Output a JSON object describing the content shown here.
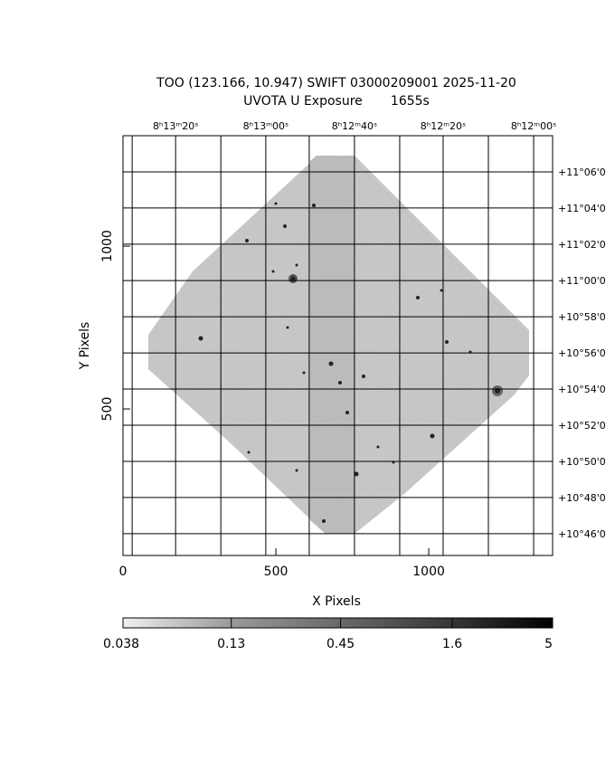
{
  "chart_data": {
    "type": "image",
    "title": "TOO (123.166, 10.947) SWIFT 03000209001 2025-11-20",
    "subtitle": "UVOTA U Exposure       1655s",
    "x_label": "X Pixels",
    "y_label": "Y Pixels",
    "xlim": [
      0,
      1405
    ],
    "ylim": [
      50,
      1339
    ],
    "xticks": [
      0,
      500,
      1000
    ],
    "yticks": [
      500,
      1000
    ],
    "ra_ticks": [
      {
        "value": 172,
        "label": "8ʰ13ᵐ20ˢ"
      },
      {
        "value": 467,
        "label": "8ʰ13ᵐ00ˢ"
      },
      {
        "value": 757,
        "label": "8ʰ12ᵐ40ˢ"
      },
      {
        "value": 1047,
        "label": "8ʰ12ᵐ20ˢ"
      },
      {
        "value": 1343,
        "label": "8ʰ12ᵐ00ˢ"
      }
    ],
    "ra_grid": [
      30,
      320,
      609,
      905,
      1195
    ],
    "dec_ticks": [
      {
        "value": 1228,
        "label": "+11°06'0"
      },
      {
        "value": 1117,
        "label": "+11°04'0"
      },
      {
        "value": 1006,
        "label": "+11°02'0"
      },
      {
        "value": 894,
        "label": "+11°00'0"
      },
      {
        "value": 783,
        "label": "+10°58'0"
      },
      {
        "value": 672,
        "label": "+10°56'0"
      },
      {
        "value": 561,
        "label": "+10°54'0"
      },
      {
        "value": 450,
        "label": "+10°52'0"
      },
      {
        "value": 339,
        "label": "+10°50'0"
      },
      {
        "value": 228,
        "label": "+10°48'0"
      },
      {
        "value": 117,
        "label": "+10°46'0"
      }
    ],
    "grid": true,
    "colorbar": {
      "scale": "log",
      "lim": [
        0.038,
        5
      ],
      "ticks": [
        0.038,
        0.13,
        0.45,
        1.6,
        5
      ]
    }
  }
}
